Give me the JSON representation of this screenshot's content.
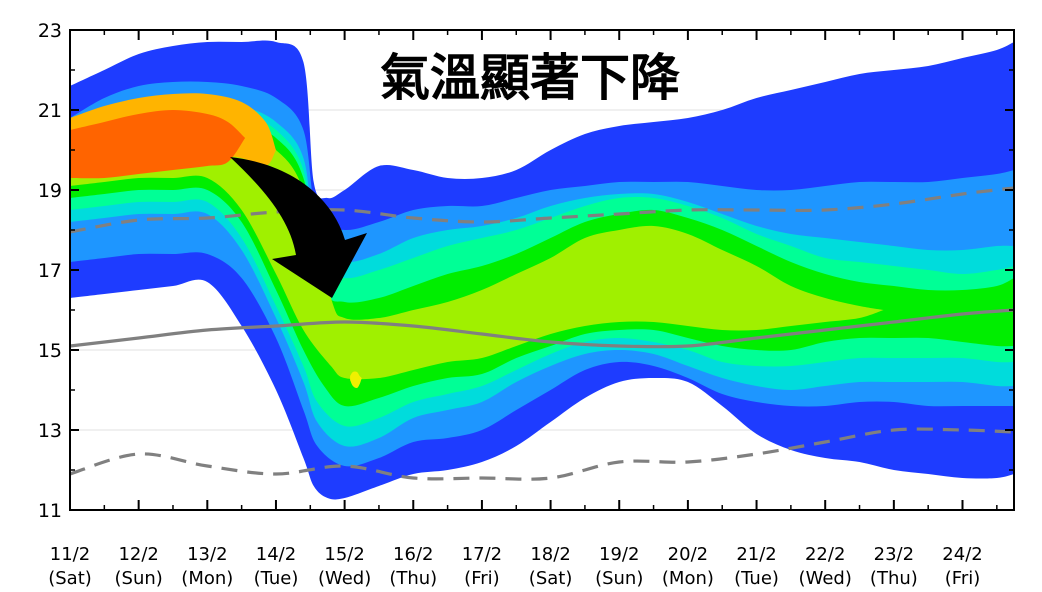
{
  "chart_data": {
    "type": "area",
    "title": "氣溫顯著下降",
    "xlabel": "",
    "ylabel": "",
    "ylim": [
      11,
      23
    ],
    "y_ticks": [
      11,
      13,
      15,
      17,
      19,
      21,
      23
    ],
    "grid": "horizontal",
    "categories": [
      {
        "date": "11/2",
        "weekday": "(Sat)",
        "weekend": false
      },
      {
        "date": "12/2",
        "weekday": "(Sun)",
        "weekend": true
      },
      {
        "date": "13/2",
        "weekday": "(Mon)",
        "weekend": false
      },
      {
        "date": "14/2",
        "weekday": "(Tue)",
        "weekend": false
      },
      {
        "date": "15/2",
        "weekday": "(Wed)",
        "weekend": false
      },
      {
        "date": "16/2",
        "weekday": "(Thu)",
        "weekend": false
      },
      {
        "date": "17/2",
        "weekday": "(Fri)",
        "weekend": false
      },
      {
        "date": "18/2",
        "weekday": "(Sat)",
        "weekend": false
      },
      {
        "date": "19/2",
        "weekday": "(Sun)",
        "weekend": true
      },
      {
        "date": "20/2",
        "weekday": "(Mon)",
        "weekend": false
      },
      {
        "date": "21/2",
        "weekday": "(Tue)",
        "weekend": false
      },
      {
        "date": "22/2",
        "weekday": "(Wed)",
        "weekend": false
      },
      {
        "date": "23/2",
        "weekday": "(Thu)",
        "weekend": false
      },
      {
        "date": "24/2",
        "weekday": "(Fri)",
        "weekend": false
      }
    ],
    "x_range": [
      0,
      13.75
    ],
    "weekend_label_color": "#ee0000",
    "band_colors": [
      "#1e3cff",
      "#1e96ff",
      "#00dcdc",
      "#00ff96",
      "#00ee00",
      "#a0f000",
      "#f0f000",
      "#ffb400",
      "#ff6400"
    ],
    "bands": [
      {
        "level": 0,
        "x": [
          0,
          0.5,
          1,
          1.5,
          2,
          2.5,
          3,
          3.4,
          3.55,
          3.75,
          4,
          4.5,
          5,
          5.5,
          6,
          6.5,
          7,
          7.5,
          8,
          8.5,
          9,
          9.5,
          10,
          10.5,
          11,
          11.5,
          12,
          12.5,
          13,
          13.5,
          13.75
        ],
        "upper": [
          21.6,
          22.0,
          22.4,
          22.6,
          22.7,
          22.7,
          22.7,
          22.2,
          19.2,
          18.8,
          19.0,
          19.6,
          19.5,
          19.3,
          19.3,
          19.5,
          20.0,
          20.4,
          20.6,
          20.7,
          20.8,
          21.0,
          21.3,
          21.5,
          21.7,
          21.9,
          22.0,
          22.1,
          22.3,
          22.5,
          22.7
        ],
        "lower": [
          16.3,
          16.4,
          16.5,
          16.6,
          16.7,
          15.6,
          14.0,
          12.3,
          11.6,
          11.3,
          11.3,
          11.6,
          11.9,
          12.0,
          12.2,
          12.6,
          13.2,
          13.8,
          14.2,
          14.3,
          14.2,
          13.6,
          12.9,
          12.5,
          12.3,
          12.2,
          12.0,
          11.9,
          11.8,
          11.8,
          11.9
        ]
      },
      {
        "level": 1,
        "x": [
          0,
          0.5,
          1,
          1.5,
          2,
          2.5,
          3,
          3.4,
          3.6,
          4,
          4.5,
          5,
          5.5,
          6,
          6.5,
          7,
          7.5,
          8,
          8.5,
          9,
          9.5,
          10,
          10.5,
          11,
          11.5,
          12,
          12.5,
          13,
          13.5,
          13.75
        ],
        "upper": [
          20.8,
          21.3,
          21.6,
          21.7,
          21.7,
          21.6,
          21.3,
          20.5,
          18.3,
          18.0,
          18.2,
          18.5,
          18.6,
          18.6,
          18.8,
          19.0,
          19.1,
          19.2,
          19.2,
          19.2,
          19.1,
          19.0,
          19.0,
          19.1,
          19.2,
          19.2,
          19.2,
          19.3,
          19.4,
          19.5
        ],
        "lower": [
          17.2,
          17.3,
          17.4,
          17.4,
          17.4,
          16.8,
          15.3,
          13.5,
          12.6,
          12.1,
          12.3,
          12.7,
          12.8,
          13.0,
          13.5,
          14.0,
          14.5,
          14.7,
          14.6,
          14.3,
          13.9,
          13.7,
          13.6,
          13.6,
          13.7,
          13.7,
          13.6,
          13.6,
          13.6,
          13.6
        ]
      },
      {
        "level": 2,
        "x": [
          0,
          0.5,
          1,
          1.5,
          2,
          2.5,
          3,
          3.4,
          3.6,
          4,
          4.5,
          5,
          5.5,
          6,
          6.5,
          7,
          7.5,
          8,
          8.5,
          9,
          9.5,
          10,
          10.5,
          11,
          11.5,
          12,
          12.5,
          13,
          13.5,
          13.75
        ],
        "upper": [
          20.6,
          20.9,
          21.1,
          21.2,
          21.2,
          21.1,
          20.7,
          19.8,
          17.6,
          17.2,
          17.4,
          17.8,
          18.0,
          18.1,
          18.3,
          18.6,
          18.8,
          18.9,
          18.9,
          18.7,
          18.4,
          18.1,
          17.9,
          17.8,
          17.7,
          17.6,
          17.5,
          17.5,
          17.6,
          17.6
        ],
        "lower": [
          18.2,
          18.3,
          18.4,
          18.4,
          18.4,
          17.5,
          15.8,
          14.2,
          13.2,
          12.6,
          12.8,
          13.3,
          13.5,
          13.7,
          14.2,
          14.6,
          14.9,
          15.0,
          14.9,
          14.6,
          14.3,
          14.1,
          14.0,
          14.1,
          14.2,
          14.2,
          14.2,
          14.2,
          14.1,
          14.1
        ]
      },
      {
        "level": 3,
        "x": [
          0,
          0.5,
          1,
          1.5,
          2,
          2.5,
          3,
          3.4,
          3.6,
          4,
          4.5,
          5,
          5.5,
          6,
          6.5,
          7,
          7.5,
          8,
          8.5,
          9,
          9.5,
          10,
          10.5,
          11,
          11.5,
          12,
          12.5,
          13,
          13.5,
          13.75
        ],
        "upper": [
          20.3,
          20.6,
          20.9,
          21.0,
          21.0,
          20.9,
          20.5,
          19.5,
          17.2,
          16.8,
          17.0,
          17.3,
          17.6,
          17.8,
          18.0,
          18.3,
          18.6,
          18.8,
          18.8,
          18.6,
          18.3,
          17.9,
          17.6,
          17.3,
          17.2,
          17.1,
          17.0,
          16.9,
          17.0,
          17.1
        ],
        "lower": [
          18.5,
          18.6,
          18.7,
          18.7,
          18.7,
          17.8,
          16.1,
          14.6,
          13.7,
          13.1,
          13.3,
          13.7,
          13.9,
          14.1,
          14.5,
          14.9,
          15.2,
          15.3,
          15.2,
          15.0,
          14.7,
          14.6,
          14.6,
          14.7,
          14.8,
          14.8,
          14.8,
          14.8,
          14.7,
          14.7
        ]
      },
      {
        "level": 4,
        "x": [
          0,
          0.5,
          1,
          1.5,
          2,
          2.5,
          3,
          3.4,
          3.7,
          4,
          4.5,
          5,
          5.5,
          6,
          6.5,
          7,
          7.5,
          8,
          8.5,
          9,
          9.5,
          10,
          10.5,
          11,
          11.5,
          12,
          12.5,
          13,
          13.5,
          13.75
        ],
        "upper": [
          20.1,
          20.4,
          20.6,
          20.8,
          20.8,
          20.7,
          20.3,
          19.3,
          16.6,
          16.2,
          16.3,
          16.6,
          16.9,
          17.1,
          17.4,
          17.8,
          18.2,
          18.4,
          18.5,
          18.3,
          18.0,
          17.6,
          17.2,
          16.9,
          16.7,
          16.6,
          16.5,
          16.5,
          16.6,
          16.8
        ],
        "lower": [
          18.8,
          18.9,
          19.0,
          19.0,
          19.0,
          18.2,
          16.5,
          15.0,
          14.1,
          13.6,
          13.8,
          14.1,
          14.3,
          14.4,
          14.8,
          15.1,
          15.4,
          15.5,
          15.5,
          15.3,
          15.1,
          15.0,
          15.0,
          15.2,
          15.3,
          15.3,
          15.3,
          15.2,
          15.1,
          15.1
        ]
      },
      {
        "level": 5,
        "x": [
          0,
          0.5,
          1,
          1.5,
          2,
          2.5,
          3,
          3.4,
          3.8,
          4,
          4.5,
          5,
          5.5,
          6,
          6.5,
          7,
          7.5,
          8,
          8.5,
          9,
          9.5,
          10,
          10.5,
          11,
          11.5,
          11.85
        ],
        "upper": [
          19.9,
          20.2,
          20.4,
          20.5,
          20.5,
          20.4,
          20.0,
          19.0,
          16.3,
          15.8,
          15.8,
          16.0,
          16.2,
          16.5,
          16.9,
          17.3,
          17.8,
          18.0,
          18.1,
          17.9,
          17.5,
          17.1,
          16.6,
          16.3,
          16.1,
          16.0
        ],
        "lower": [
          19.1,
          19.2,
          19.3,
          19.3,
          19.3,
          18.5,
          16.9,
          15.5,
          14.6,
          14.3,
          14.3,
          14.5,
          14.7,
          14.8,
          15.1,
          15.4,
          15.6,
          15.7,
          15.7,
          15.6,
          15.5,
          15.5,
          15.6,
          15.7,
          15.8,
          16.0
        ]
      },
      {
        "level": 6,
        "x": [
          4.08,
          4.12,
          4.18,
          4.22,
          4.25
        ],
        "upper": [
          14.35,
          14.45,
          14.45,
          14.35,
          14.3
        ],
        "lower": [
          14.25,
          14.1,
          14.05,
          14.15,
          14.3
        ]
      },
      {
        "level": 7,
        "x": [
          0,
          0.5,
          1,
          1.5,
          2,
          2.5,
          2.85,
          3.0
        ],
        "upper": [
          20.8,
          21.1,
          21.3,
          21.4,
          21.4,
          21.2,
          20.7,
          20.0
        ],
        "lower": [
          19.8,
          19.7,
          19.8,
          19.9,
          19.9,
          19.8,
          19.6,
          20.0
        ]
      },
      {
        "level": 8,
        "x": [
          0,
          0.5,
          1,
          1.5,
          2,
          2.3,
          2.55
        ],
        "upper": [
          20.5,
          20.7,
          20.9,
          21.0,
          20.9,
          20.7,
          20.3
        ],
        "lower": [
          19.3,
          19.3,
          19.4,
          19.5,
          19.6,
          19.7,
          20.3
        ]
      }
    ],
    "series": [
      {
        "style": "dashed",
        "x": [
          0,
          1,
          2,
          3,
          4,
          5,
          6,
          7,
          8,
          9,
          10,
          11,
          12,
          13,
          13.75
        ],
        "values": [
          17.95,
          18.25,
          18.3,
          18.45,
          18.5,
          18.3,
          18.2,
          18.3,
          18.4,
          18.5,
          18.5,
          18.5,
          18.65,
          18.9,
          19.05
        ]
      },
      {
        "style": "solid",
        "x": [
          0,
          1,
          2,
          3,
          4,
          5,
          6,
          7,
          8,
          9,
          10,
          11,
          12,
          13,
          13.75
        ],
        "values": [
          15.1,
          15.3,
          15.5,
          15.6,
          15.7,
          15.6,
          15.4,
          15.2,
          15.1,
          15.1,
          15.3,
          15.5,
          15.7,
          15.9,
          16.0
        ]
      },
      {
        "style": "dashed",
        "x": [
          0,
          1,
          2,
          3,
          4,
          5,
          6,
          7,
          8,
          9,
          10,
          11,
          12,
          13,
          13.75
        ],
        "values": [
          11.9,
          12.4,
          12.1,
          11.9,
          12.1,
          11.8,
          11.8,
          11.8,
          12.2,
          12.2,
          12.4,
          12.7,
          13.0,
          13.0,
          12.95
        ]
      }
    ],
    "line_color": "#808080"
  }
}
